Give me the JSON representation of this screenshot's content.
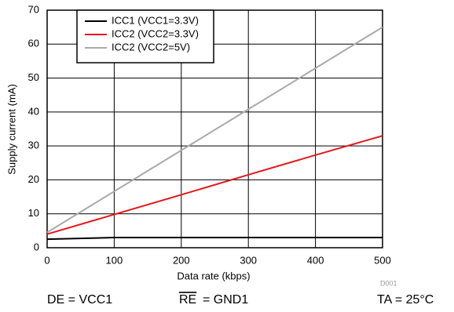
{
  "chart_data": {
    "type": "line",
    "xlabel": "Data rate (kbps)",
    "ylabel": "Supply current (mA)",
    "x": [
      0,
      100,
      200,
      300,
      400,
      500
    ],
    "series": [
      {
        "name": "ICC1 (VCC1=3.3V)",
        "color": "#000000",
        "values": [
          2.5,
          3,
          3,
          3,
          3,
          3
        ]
      },
      {
        "name": "ICC2 (VCC2=3.3V)",
        "color": "#e4161b",
        "values": [
          4,
          9.8,
          15.6,
          21.5,
          27.3,
          33
        ]
      },
      {
        "name": "ICC2 (VCC2=5V)",
        "color": "#aaaaaa",
        "values": [
          4.5,
          16.6,
          28.7,
          40.8,
          52.9,
          65
        ]
      }
    ],
    "xlim": [
      0,
      500
    ],
    "xticks": [
      0,
      100,
      200,
      300,
      400,
      500
    ],
    "ylim": [
      0,
      70
    ],
    "yticks": [
      0,
      10,
      20,
      30,
      40,
      50,
      60,
      70
    ],
    "grid": true,
    "legend": "upper left",
    "annotations": [
      "DE = VCC1",
      "RE",
      "= GND1",
      "TA = 25°C",
      "D001"
    ]
  }
}
